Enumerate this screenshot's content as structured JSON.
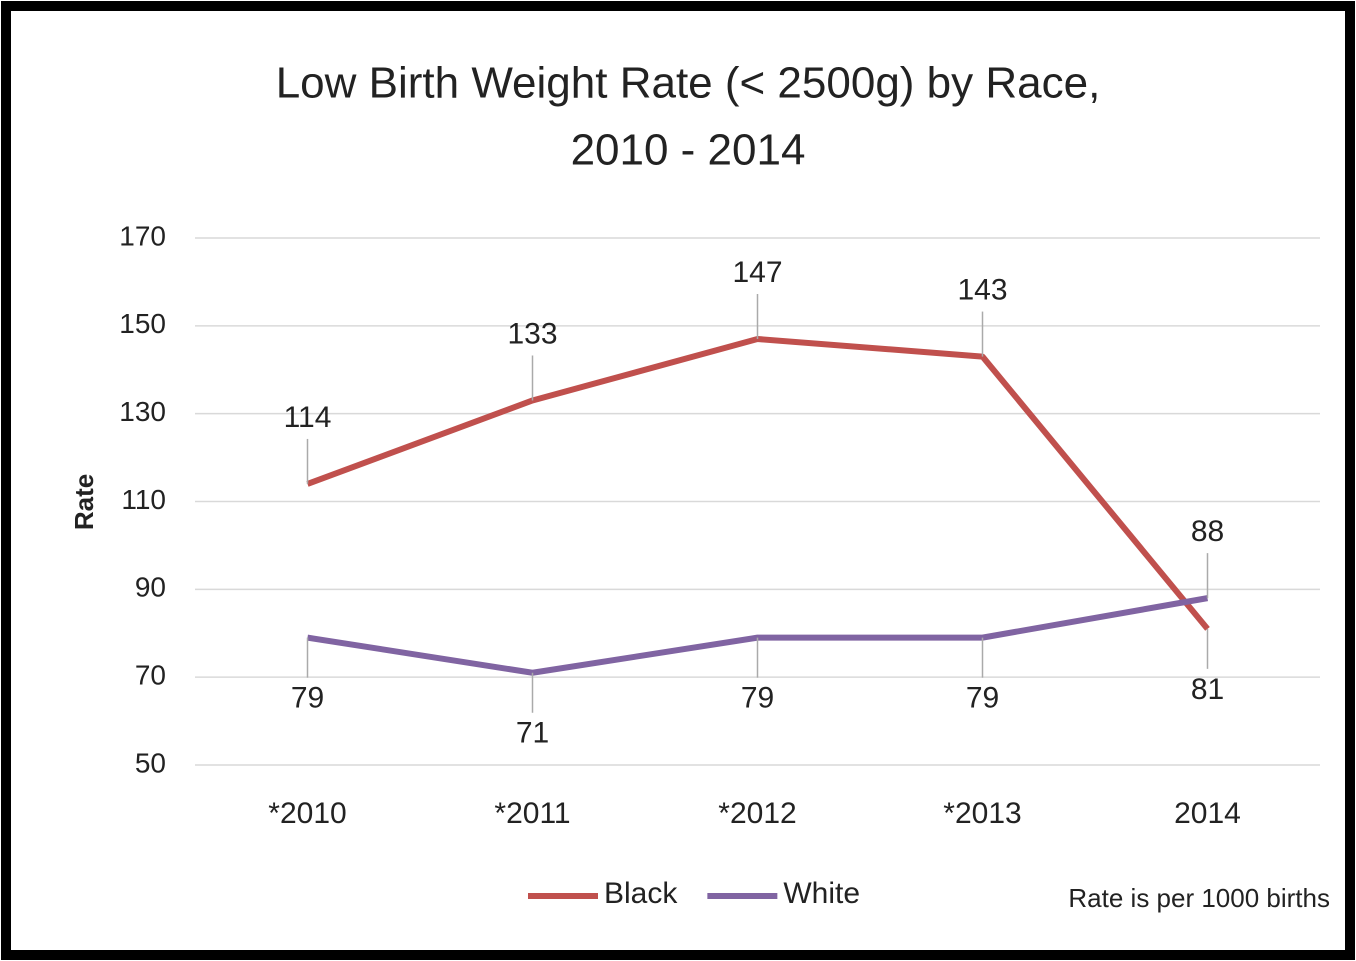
{
  "chart_data": {
    "type": "line",
    "title": [
      "Low Birth Weight Rate (< 2500g) by Race,",
      "2010 - 2014"
    ],
    "y_label": "Rate",
    "note": "Rate is per 1000 births",
    "categories": [
      "*2010",
      "*2011",
      "*2012",
      "*2013",
      "2014"
    ],
    "series": [
      {
        "name": "Black",
        "color": "#c0504d",
        "values": [
          114,
          133,
          147,
          143,
          81
        ]
      },
      {
        "name": "White",
        "color": "#8064a2",
        "values": [
          79,
          71,
          79,
          79,
          88
        ]
      }
    ],
    "ylim": [
      50,
      170
    ],
    "yticks": [
      50,
      70,
      90,
      110,
      130,
      150,
      170
    ],
    "grid": true,
    "legend": "bottom"
  }
}
